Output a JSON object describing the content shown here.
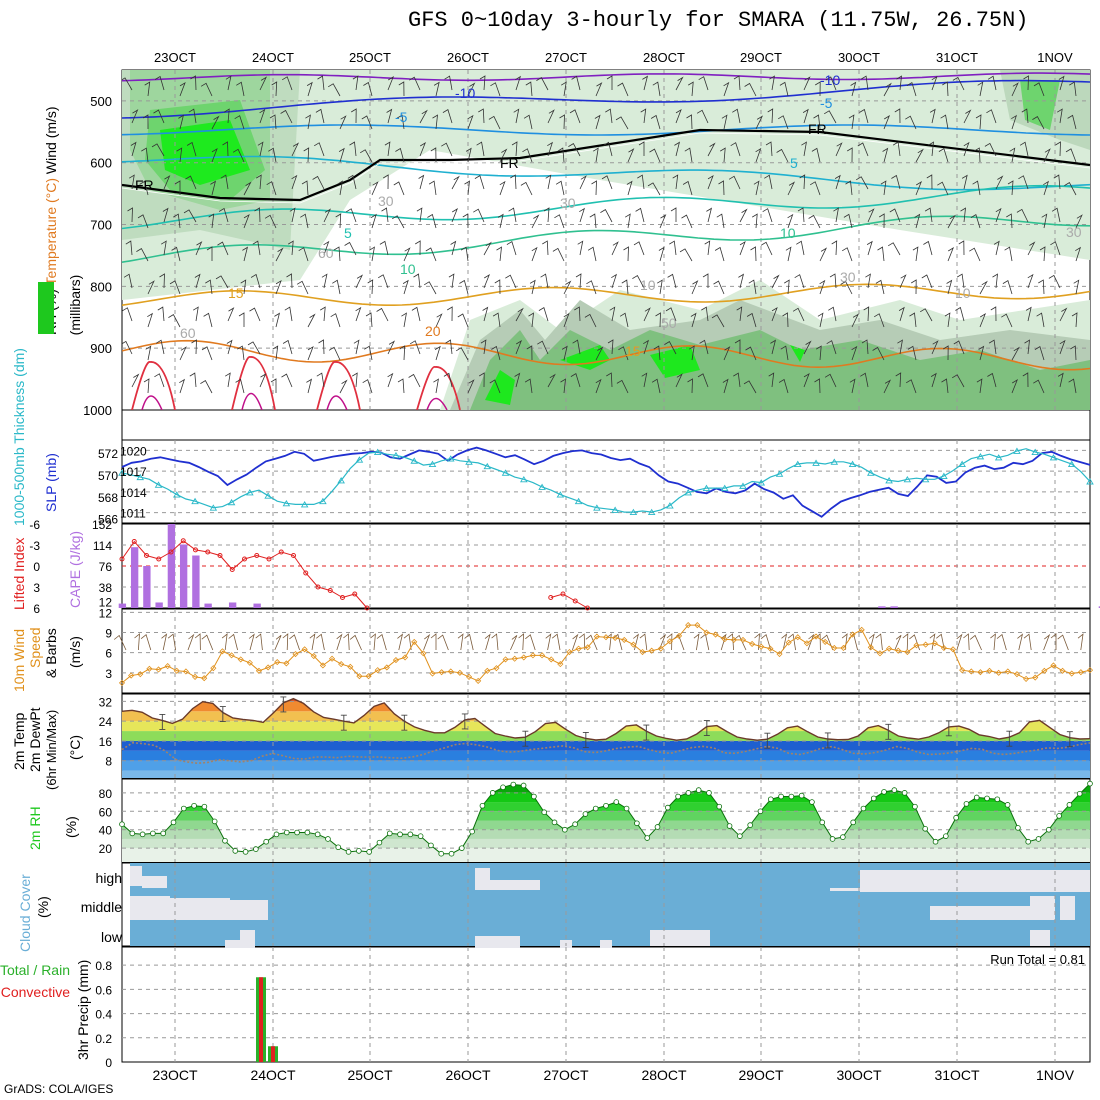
{
  "title": "GFS 0~10day 3-hourly for SMARA (11.75W, 26.75N)",
  "credit": "GrADS: COLA/IGES",
  "colors": {
    "slp": "#1f2fd0",
    "thickness": "#2ab8c8",
    "lifted": "#e02020",
    "cape": "#b070e0",
    "wind10m": "#e0901a",
    "rh_green": "#1ec81e",
    "cloud_bg": "#6aaed6",
    "cloud_fg": "#e8e8ee",
    "precip_total": "#2ab02a",
    "precip_conv": "#e02020"
  },
  "chart_data": [
    {
      "type": "contour",
      "panel": "upper-air",
      "ylabel_parts": [
        "RH (%)",
        "Temperature (°C)",
        "Wind (m/s)"
      ],
      "ylabel_sub": "(millibars)",
      "y_ticks": [
        "500",
        "600",
        "700",
        "800",
        "900",
        "1000"
      ],
      "x_ticks_top": [
        "23OCT",
        "24OCT",
        "25OCT",
        "26OCT",
        "27OCT",
        "28OCT",
        "29OCT",
        "30OCT",
        "31OCT",
        "1NOV"
      ],
      "contour_labels": [
        "-10",
        "-10",
        "-5",
        "-5",
        "FR",
        "FR",
        "FR",
        "5",
        "5",
        "10",
        "10",
        "15",
        "15",
        "20",
        "30",
        "30",
        "30",
        "30",
        "10",
        "10",
        "50",
        "60",
        "60"
      ]
    },
    {
      "type": "line",
      "panel": "slp-thickness",
      "ylabel_left": "1000-500mb Thickness (dm)",
      "ylabel_right": "SLP (mb)",
      "y_left_ticks": [
        "566",
        "568",
        "570",
        "572"
      ],
      "y_right_ticks": [
        "1011",
        "1014",
        "1017",
        "1020"
      ],
      "series": [
        {
          "name": "SLP (mb)",
          "values": [
            1017.6,
            1018.2,
            1018.4,
            1018.8,
            1019.0,
            1018.7,
            1018.4,
            1018.2,
            1017.6,
            1016.9,
            1016.3,
            1015.0,
            1015.8,
            1016.5,
            1017.5,
            1018.4,
            1018.8,
            1019.2,
            1019.8,
            1019.5,
            1018.5,
            1018.8,
            1019.1,
            1019.3,
            1019.5,
            1019.6,
            1019.8,
            1019.7,
            1019.0,
            1018.8,
            1019.4,
            1020.0,
            1019.8,
            1019.5,
            1018.5,
            1019.4,
            1020.0,
            1020.4,
            1020.0,
            1019.5,
            1019.0,
            1019.3,
            1018.7,
            1018.0,
            1018.5,
            1019.2,
            1019.6,
            1019.9,
            1020.0,
            1019.6,
            1019.4,
            1018.9,
            1018.6,
            1018.8,
            1018.1,
            1017.6,
            1016.4,
            1015.5,
            1015.2,
            1014.6,
            1014.0,
            1013.8,
            1014.5,
            1014.0,
            1013.8,
            1014.2,
            1015.2,
            1014.4,
            1013.9,
            1013.0,
            1013.5,
            1012.0,
            1011.2,
            1010.4,
            1011.6,
            1012.6,
            1013.1,
            1013.5,
            1014.0,
            1014.3,
            1014.6,
            1013.7,
            1013.4,
            1014.8,
            1016.4,
            1016.2,
            1015.3,
            1015.5,
            1016.8,
            1017.5,
            1017.8,
            1017.3,
            1017.5,
            1018.2,
            1018.0,
            1018.5,
            1019.6,
            1019.8,
            1019.2,
            1018.7,
            1018.3,
            1017.9
          ]
        },
        {
          "name": "1000-500mb Thickness (dm)",
          "values": [
            570.2,
            570.0,
            569.8,
            569.6,
            569.1,
            568.7,
            568.2,
            567.8,
            567.6,
            567.3,
            567.0,
            567.1,
            567.5,
            568.0,
            568.4,
            568.6,
            568.1,
            567.6,
            567.4,
            567.3,
            567.3,
            567.3,
            567.6,
            568.5,
            569.5,
            570.6,
            571.4,
            572.0,
            572.1,
            571.9,
            571.8,
            571.6,
            571.3,
            570.9,
            571.0,
            571.3,
            571.5,
            571.3,
            571.2,
            571.1,
            570.8,
            570.5,
            570.2,
            569.8,
            569.6,
            569.3,
            568.9,
            568.6,
            568.2,
            567.9,
            567.6,
            567.2,
            567.0,
            566.9,
            566.8,
            566.6,
            566.6,
            566.7,
            566.6,
            566.8,
            567.2,
            567.9,
            568.4,
            568.6,
            568.8,
            568.8,
            568.8,
            569.0,
            569.0,
            569.4,
            569.3,
            569.8,
            570.1,
            570.6,
            571.0,
            571.1,
            571.1,
            571.0,
            571.2,
            571.2,
            571.0,
            570.7,
            570.2,
            569.8,
            569.5,
            569.4,
            569.6,
            569.7,
            569.6,
            569.6,
            569.9,
            570.4,
            571.0,
            571.5,
            571.7,
            571.9,
            571.6,
            571.8,
            572.2,
            572.4,
            572.1,
            571.9,
            571.6,
            571.3,
            571.0,
            570.3,
            569.4
          ]
        }
      ]
    },
    {
      "type": "bar",
      "panel": "cape-li",
      "ylabel_left": "Lifted Index",
      "ylabel_right": "CAPE (J/kg)",
      "y_left_ticks": [
        "6",
        "3",
        "0",
        "-3",
        "-6"
      ],
      "y_right_ticks": [
        "12",
        "38",
        "76",
        "114",
        "152"
      ],
      "series": [
        {
          "name": "CAPE (J/kg)",
          "values": [
            8,
            110,
            76,
            10,
            152,
            115,
            95,
            8,
            0,
            10,
            0,
            8,
            0,
            0,
            0,
            0,
            0,
            0,
            0,
            0,
            0,
            0,
            0,
            0,
            0,
            0,
            0,
            0,
            0,
            0,
            0,
            0,
            0,
            0,
            0,
            0,
            0,
            0,
            0,
            0,
            0,
            0,
            0,
            0,
            0,
            0,
            0,
            0,
            0,
            0,
            0,
            0,
            0,
            0,
            0,
            0,
            0,
            0,
            0,
            0,
            0,
            0,
            3,
            3,
            0,
            0,
            0,
            0,
            0,
            0,
            0,
            0,
            0,
            0,
            0,
            0,
            0,
            0,
            0,
            0,
            3,
            0,
            0,
            0,
            0,
            0,
            0,
            0,
            0,
            0,
            0,
            0,
            0,
            0,
            0,
            0,
            0,
            0,
            0,
            0,
            0,
            0,
            0,
            0,
            0,
            0
          ]
        },
        {
          "name": "Lifted Index",
          "values": [
            -1,
            -3.5,
            -1.5,
            -1,
            -2,
            -3.6,
            -2.3,
            -2,
            -1.5,
            0.5,
            -1,
            -1.5,
            -1,
            -2,
            -1.5,
            1,
            3,
            3.5,
            4.5,
            4,
            6,
            null,
            null,
            null,
            null,
            null,
            null,
            null,
            null,
            null,
            null,
            null,
            null,
            null,
            null,
            4.5,
            4,
            5,
            6,
            null,
            null,
            null,
            null,
            null,
            null,
            null,
            null,
            null,
            null,
            null,
            null,
            null,
            null,
            null,
            null,
            null,
            null,
            null,
            null,
            null,
            null,
            null,
            null,
            null,
            null,
            null,
            null,
            null,
            null,
            null,
            null,
            null,
            null,
            null,
            null,
            null,
            null,
            null,
            null,
            null,
            null,
            null,
            null,
            null,
            null,
            null,
            null,
            null,
            null,
            null,
            null,
            null,
            null,
            null,
            null,
            null,
            null,
            null,
            null,
            null,
            null,
            null,
            null,
            null,
            null,
            null
          ]
        }
      ]
    },
    {
      "type": "line",
      "panel": "wind10m",
      "ylabel_parts": [
        "10m Wind",
        "Speed",
        "& Barbs"
      ],
      "ylabel_sub": "(m/s)",
      "y_ticks": [
        "3",
        "6",
        "9",
        "12"
      ],
      "series": [
        {
          "name": "10m Wind Speed",
          "values": [
            1.5,
            2.6,
            2.8,
            3.6,
            3.5,
            4.0,
            3.3,
            3.2,
            2.4,
            2.2,
            3.7,
            6.2,
            5.6,
            5.0,
            4.5,
            3.3,
            3.8,
            4.6,
            4.4,
            5.8,
            6.5,
            5.5,
            4.1,
            5.1,
            4.3,
            3.9,
            2.5,
            2.5,
            3.4,
            3.8,
            4.9,
            5.3,
            7.6,
            5.9,
            2.9,
            3.1,
            3.2,
            3.0,
            2.4,
            1.8,
            3.3,
            3.7,
            5.0,
            5.1,
            5.3,
            5.6,
            5.6,
            5.0,
            4.3,
            6.1,
            6.6,
            6.8,
            8.4,
            8.3,
            8.2,
            7.9,
            7.2,
            6.1,
            6.3,
            6.6,
            7.7,
            8.5,
            10.1,
            10.1,
            9.0,
            8.7,
            8.0,
            7.9,
            7.9,
            7.3,
            6.9,
            6.6,
            5.8,
            7.5,
            8.3,
            7.4,
            8.4,
            7.6,
            6.7,
            6.7,
            8.7,
            9.4,
            6.8,
            5.9,
            6.6,
            6.3,
            6.1,
            7.1,
            7.2,
            7.4,
            6.7,
            6.5,
            3.4,
            3.2,
            3.1,
            3.3,
            3.0,
            3.2,
            2.8,
            2.1,
            2.3,
            3.3,
            4.1,
            3.3,
            2.9,
            3.1,
            3.4
          ]
        }
      ]
    },
    {
      "type": "area",
      "panel": "temp-dewpt",
      "ylabel_parts": [
        "2m Temp",
        "2m DewPt",
        "(6hr Min/Max)"
      ],
      "ylabel_sub": "(°C)",
      "y_ticks": [
        "8",
        "16",
        "24",
        "32"
      ],
      "series": [
        {
          "name": "2m Temp",
          "values": [
            28.0,
            28.4,
            27.6,
            25.3,
            24.3,
            23.1,
            24.8,
            29.1,
            31.9,
            31.2,
            27.5,
            25.3,
            24.7,
            24.3,
            23.5,
            27.3,
            31.4,
            33.1,
            31.2,
            27.8,
            25.5,
            24.8,
            24.0,
            23.3,
            26.3,
            30.0,
            31.4,
            27.0,
            24.0,
            21.7,
            20.3,
            19.3,
            19.3,
            21.5,
            24.5,
            25.1,
            22.0,
            19.0,
            18.0,
            17.2,
            17.5,
            19.8,
            23.0,
            23.5,
            20.7,
            18.2,
            17.0,
            16.4,
            16.7,
            19.0,
            22.0,
            22.5,
            20.0,
            18.0,
            17.0,
            16.3,
            16.8,
            18.8,
            21.8,
            22.2,
            19.8,
            17.6,
            16.8,
            16.3,
            16.7,
            18.7,
            21.3,
            22.0,
            19.7,
            17.6,
            16.8,
            16.5,
            16.6,
            18.0,
            21.3,
            22.2,
            20.3,
            18.0,
            17.2,
            16.7,
            17.6,
            19.3,
            21.7,
            22.0,
            20.7,
            18.5,
            17.8,
            16.8,
            17.5,
            19.3,
            23.7,
            24.3,
            21.5,
            18.6,
            17.3,
            16.8,
            16.9
          ]
        },
        {
          "name": "2m DewPt",
          "values": [
            12.5,
            15.3,
            14.9,
            14.2,
            12.0,
            8.5,
            7.5,
            7.0,
            7.3,
            8.4,
            8.0,
            7.5,
            8.0,
            9.8,
            10.9,
            10.0,
            8.9,
            8.7,
            9.5,
            9.5,
            9.2,
            9.8,
            9.5,
            9.5,
            9.5,
            9.2,
            9.0,
            9.5,
            10.5,
            12.0,
            13.2,
            14.5,
            15.0,
            14.4,
            13.5,
            12.1,
            11.5,
            11.8,
            12.5,
            13.0,
            13.5,
            14.0,
            13.2,
            11.7,
            11.3,
            12.0,
            13.0,
            13.5,
            13.8,
            12.5,
            11.5,
            11.0,
            12.2,
            13.3,
            13.8,
            13.2,
            11.2,
            11.0,
            11.8,
            12.8,
            13.8,
            13.0,
            11.0,
            10.5,
            11.5,
            13.0,
            13.7,
            12.5,
            11.0,
            10.7,
            11.3,
            12.3,
            13.7,
            13.0,
            11.5,
            10.5,
            10.7,
            11.2,
            12.0,
            13.0,
            12.6,
            11.0,
            10.5,
            11.0,
            11.7,
            12.3,
            13.2,
            13.0,
            13.5,
            14.5,
            15.2
          ]
        }
      ]
    },
    {
      "type": "area",
      "panel": "rh2m",
      "ylabel": "2m RH",
      "ylabel_sub": "(%)",
      "y_ticks": [
        "20",
        "40",
        "60",
        "80"
      ],
      "series": [
        {
          "name": "2m RH",
          "values": [
            46,
            36,
            35,
            36,
            36,
            48,
            63,
            66,
            65,
            49,
            28,
            17,
            16,
            19,
            27,
            35,
            37,
            37,
            37,
            35,
            30,
            21,
            16,
            17,
            16,
            26,
            36,
            35,
            35,
            33,
            23,
            14,
            14,
            20,
            38,
            66,
            80,
            86,
            89,
            88,
            76,
            59,
            48,
            40,
            46,
            57,
            63,
            66,
            70,
            63,
            47,
            31,
            43,
            64,
            76,
            80,
            83,
            80,
            65,
            44,
            33,
            45,
            60,
            73,
            76,
            76,
            77,
            70,
            48,
            30,
            32,
            48,
            63,
            74,
            81,
            83,
            80,
            65,
            41,
            27,
            33,
            53,
            68,
            75,
            74,
            73,
            67,
            42,
            27,
            30,
            40,
            55,
            67,
            79,
            90
          ]
        }
      ]
    },
    {
      "type": "heatmap",
      "panel": "cloud",
      "ylabel": "Cloud Cover",
      "ylabel_sub": "(%)",
      "y_ticks": [
        "high",
        "middle",
        "low"
      ]
    },
    {
      "type": "bar",
      "panel": "precip",
      "ylabel_parts": [
        "Total / Rain",
        "Convective"
      ],
      "ylabel_sub": "3hr Precip (mm)",
      "y_ticks": [
        "0",
        "0.2",
        "0.4",
        "0.6",
        "0.8"
      ],
      "x_ticks_bottom": [
        "23OCT",
        "24OCT",
        "25OCT",
        "26OCT",
        "27OCT",
        "28OCT",
        "29OCT",
        "30OCT",
        "31OCT",
        "1NOV"
      ],
      "annotation": "Run Total = 0.81",
      "series": [
        {
          "name": "Total",
          "values": [
            0.7,
            0.13
          ]
        },
        {
          "name": "Convective",
          "values": [
            0.7,
            0.13
          ]
        }
      ]
    }
  ]
}
